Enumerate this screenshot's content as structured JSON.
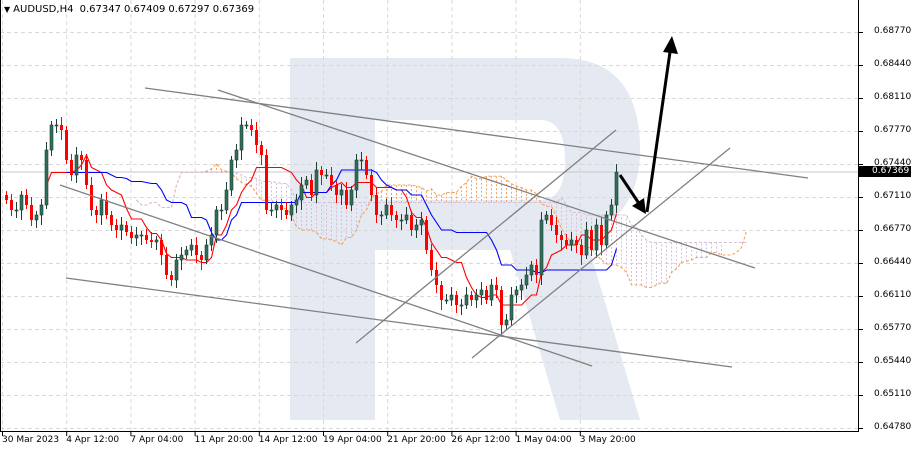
{
  "header": {
    "symbol": "AUDUSD,H4",
    "open": "0.67347",
    "high": "0.67409",
    "low": "0.67297",
    "close": "0.67369"
  },
  "current_price_label": "0.67369",
  "colors": {
    "bull": "#2f6e59",
    "bear": "#ff0000",
    "tenkan": "#ff0000",
    "kijun": "#0000ff",
    "cloud_up": "#f4a460",
    "cloud_down": "#d8bfd8",
    "grid": "#d9d9d9",
    "trendlines": "#808080",
    "arrows": "#000000",
    "watermark": "#e4e9f2"
  },
  "chart_data": {
    "type": "candlestick",
    "title": "AUDUSD,H4",
    "timeframe": "H4",
    "indicators": [
      "Ichimoku Kinko Hyo"
    ],
    "ylim": [
      0.6475,
      0.6909
    ],
    "y_ticks": [
      "0.68770",
      "0.68440",
      "0.68110",
      "0.67770",
      "0.67440",
      "0.67110",
      "0.66770",
      "0.66440",
      "0.66110",
      "0.65770",
      "0.65440",
      "0.65110",
      "0.64780"
    ],
    "x_ticks": [
      "30 Mar 2023",
      "4 Apr 12:00",
      "7 Apr 04:00",
      "11 Apr 20:00",
      "14 Apr 12:00",
      "19 Apr 04:00",
      "21 Apr 20:00",
      "26 Apr 12:00",
      "1 May 04:00",
      "3 May 20:00"
    ],
    "grid": true,
    "closes": [
      0.6709,
      0.6699,
      0.6699,
      0.6714,
      0.6704,
      0.6689,
      0.6694,
      0.6704,
      0.6759,
      0.6784,
      0.6784,
      0.6779,
      0.6749,
      0.6734,
      0.6754,
      0.6749,
      0.6724,
      0.6699,
      0.6694,
      0.6709,
      0.6694,
      0.6684,
      0.6679,
      0.6684,
      0.6677,
      0.6671,
      0.6674,
      0.6674,
      0.6669,
      0.6667,
      0.6669,
      0.6654,
      0.6634,
      0.6629,
      0.6649,
      0.6654,
      0.6659,
      0.6664,
      0.6654,
      0.6649,
      0.6664,
      0.6674,
      0.6699,
      0.6699,
      0.6719,
      0.6749,
      0.6759,
      0.6784,
      0.6784,
      0.6779,
      0.6764,
      0.6754,
      0.6699,
      0.6699,
      0.6704,
      0.6699,
      0.6694,
      0.6704,
      0.6709,
      0.6724,
      0.6729,
      0.6714,
      0.6739,
      0.6734,
      0.6734,
      0.6724,
      0.6714,
      0.6719,
      0.6704,
      0.6719,
      0.6749,
      0.6749,
      0.6734,
      0.6714,
      0.6694,
      0.6694,
      0.6704,
      0.6694,
      0.6689,
      0.6689,
      0.6694,
      0.6679,
      0.6684,
      0.6689,
      0.6659,
      0.6639,
      0.6624,
      0.6609,
      0.6609,
      0.6614,
      0.6604,
      0.6604,
      0.6614,
      0.6609,
      0.6614,
      0.6619,
      0.6609,
      0.6624,
      0.6619,
      0.6584,
      0.6589,
      0.6614,
      0.6619,
      0.6624,
      0.6634,
      0.6644,
      0.6634,
      0.6689,
      0.6694,
      0.6684,
      0.6674,
      0.6669,
      0.6664,
      0.6669,
      0.6664,
      0.6654,
      0.6679,
      0.6659,
      0.6684,
      0.6664,
      0.6694,
      0.6704,
      0.67369
    ]
  }
}
